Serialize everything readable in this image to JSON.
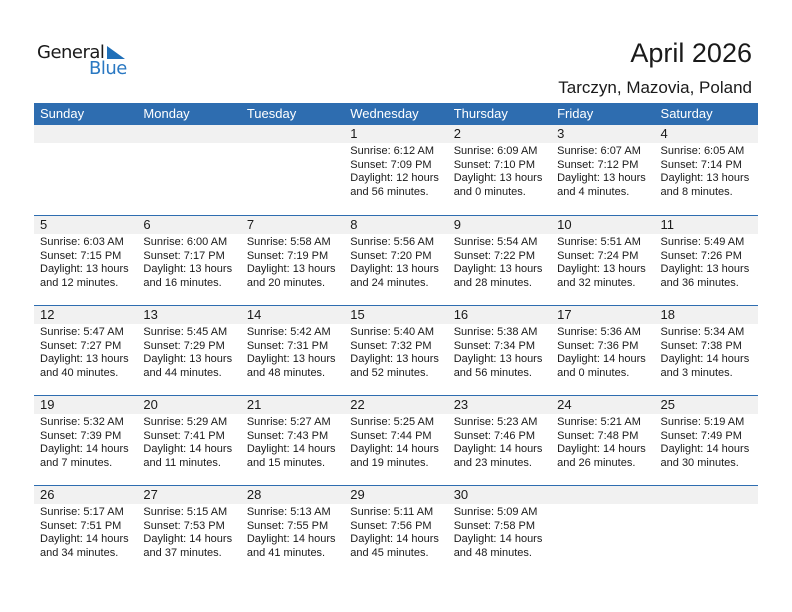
{
  "logo": {
    "general": "General",
    "blue": "Blue"
  },
  "header": {
    "title": "April 2026",
    "location": "Tarczyn, Mazovia, Poland"
  },
  "weekdays": [
    "Sunday",
    "Monday",
    "Tuesday",
    "Wednesday",
    "Thursday",
    "Friday",
    "Saturday"
  ],
  "colors": {
    "accent": "#2e6db0",
    "day_band": "#f1f1f1"
  },
  "weeks": [
    [
      null,
      null,
      null,
      {
        "day": "1",
        "sunrise": "Sunrise: 6:12 AM",
        "sunset": "Sunset: 7:09 PM",
        "daylight": "Daylight: 12 hours",
        "minutes": "and 56 minutes."
      },
      {
        "day": "2",
        "sunrise": "Sunrise: 6:09 AM",
        "sunset": "Sunset: 7:10 PM",
        "daylight": "Daylight: 13 hours",
        "minutes": "and 0 minutes."
      },
      {
        "day": "3",
        "sunrise": "Sunrise: 6:07 AM",
        "sunset": "Sunset: 7:12 PM",
        "daylight": "Daylight: 13 hours",
        "minutes": "and 4 minutes."
      },
      {
        "day": "4",
        "sunrise": "Sunrise: 6:05 AM",
        "sunset": "Sunset: 7:14 PM",
        "daylight": "Daylight: 13 hours",
        "minutes": "and 8 minutes."
      }
    ],
    [
      {
        "day": "5",
        "sunrise": "Sunrise: 6:03 AM",
        "sunset": "Sunset: 7:15 PM",
        "daylight": "Daylight: 13 hours",
        "minutes": "and 12 minutes."
      },
      {
        "day": "6",
        "sunrise": "Sunrise: 6:00 AM",
        "sunset": "Sunset: 7:17 PM",
        "daylight": "Daylight: 13 hours",
        "minutes": "and 16 minutes."
      },
      {
        "day": "7",
        "sunrise": "Sunrise: 5:58 AM",
        "sunset": "Sunset: 7:19 PM",
        "daylight": "Daylight: 13 hours",
        "minutes": "and 20 minutes."
      },
      {
        "day": "8",
        "sunrise": "Sunrise: 5:56 AM",
        "sunset": "Sunset: 7:20 PM",
        "daylight": "Daylight: 13 hours",
        "minutes": "and 24 minutes."
      },
      {
        "day": "9",
        "sunrise": "Sunrise: 5:54 AM",
        "sunset": "Sunset: 7:22 PM",
        "daylight": "Daylight: 13 hours",
        "minutes": "and 28 minutes."
      },
      {
        "day": "10",
        "sunrise": "Sunrise: 5:51 AM",
        "sunset": "Sunset: 7:24 PM",
        "daylight": "Daylight: 13 hours",
        "minutes": "and 32 minutes."
      },
      {
        "day": "11",
        "sunrise": "Sunrise: 5:49 AM",
        "sunset": "Sunset: 7:26 PM",
        "daylight": "Daylight: 13 hours",
        "minutes": "and 36 minutes."
      }
    ],
    [
      {
        "day": "12",
        "sunrise": "Sunrise: 5:47 AM",
        "sunset": "Sunset: 7:27 PM",
        "daylight": "Daylight: 13 hours",
        "minutes": "and 40 minutes."
      },
      {
        "day": "13",
        "sunrise": "Sunrise: 5:45 AM",
        "sunset": "Sunset: 7:29 PM",
        "daylight": "Daylight: 13 hours",
        "minutes": "and 44 minutes."
      },
      {
        "day": "14",
        "sunrise": "Sunrise: 5:42 AM",
        "sunset": "Sunset: 7:31 PM",
        "daylight": "Daylight: 13 hours",
        "minutes": "and 48 minutes."
      },
      {
        "day": "15",
        "sunrise": "Sunrise: 5:40 AM",
        "sunset": "Sunset: 7:32 PM",
        "daylight": "Daylight: 13 hours",
        "minutes": "and 52 minutes."
      },
      {
        "day": "16",
        "sunrise": "Sunrise: 5:38 AM",
        "sunset": "Sunset: 7:34 PM",
        "daylight": "Daylight: 13 hours",
        "minutes": "and 56 minutes."
      },
      {
        "day": "17",
        "sunrise": "Sunrise: 5:36 AM",
        "sunset": "Sunset: 7:36 PM",
        "daylight": "Daylight: 14 hours",
        "minutes": "and 0 minutes."
      },
      {
        "day": "18",
        "sunrise": "Sunrise: 5:34 AM",
        "sunset": "Sunset: 7:38 PM",
        "daylight": "Daylight: 14 hours",
        "minutes": "and 3 minutes."
      }
    ],
    [
      {
        "day": "19",
        "sunrise": "Sunrise: 5:32 AM",
        "sunset": "Sunset: 7:39 PM",
        "daylight": "Daylight: 14 hours",
        "minutes": "and 7 minutes."
      },
      {
        "day": "20",
        "sunrise": "Sunrise: 5:29 AM",
        "sunset": "Sunset: 7:41 PM",
        "daylight": "Daylight: 14 hours",
        "minutes": "and 11 minutes."
      },
      {
        "day": "21",
        "sunrise": "Sunrise: 5:27 AM",
        "sunset": "Sunset: 7:43 PM",
        "daylight": "Daylight: 14 hours",
        "minutes": "and 15 minutes."
      },
      {
        "day": "22",
        "sunrise": "Sunrise: 5:25 AM",
        "sunset": "Sunset: 7:44 PM",
        "daylight": "Daylight: 14 hours",
        "minutes": "and 19 minutes."
      },
      {
        "day": "23",
        "sunrise": "Sunrise: 5:23 AM",
        "sunset": "Sunset: 7:46 PM",
        "daylight": "Daylight: 14 hours",
        "minutes": "and 23 minutes."
      },
      {
        "day": "24",
        "sunrise": "Sunrise: 5:21 AM",
        "sunset": "Sunset: 7:48 PM",
        "daylight": "Daylight: 14 hours",
        "minutes": "and 26 minutes."
      },
      {
        "day": "25",
        "sunrise": "Sunrise: 5:19 AM",
        "sunset": "Sunset: 7:49 PM",
        "daylight": "Daylight: 14 hours",
        "minutes": "and 30 minutes."
      }
    ],
    [
      {
        "day": "26",
        "sunrise": "Sunrise: 5:17 AM",
        "sunset": "Sunset: 7:51 PM",
        "daylight": "Daylight: 14 hours",
        "minutes": "and 34 minutes."
      },
      {
        "day": "27",
        "sunrise": "Sunrise: 5:15 AM",
        "sunset": "Sunset: 7:53 PM",
        "daylight": "Daylight: 14 hours",
        "minutes": "and 37 minutes."
      },
      {
        "day": "28",
        "sunrise": "Sunrise: 5:13 AM",
        "sunset": "Sunset: 7:55 PM",
        "daylight": "Daylight: 14 hours",
        "minutes": "and 41 minutes."
      },
      {
        "day": "29",
        "sunrise": "Sunrise: 5:11 AM",
        "sunset": "Sunset: 7:56 PM",
        "daylight": "Daylight: 14 hours",
        "minutes": "and 45 minutes."
      },
      {
        "day": "30",
        "sunrise": "Sunrise: 5:09 AM",
        "sunset": "Sunset: 7:58 PM",
        "daylight": "Daylight: 14 hours",
        "minutes": "and 48 minutes."
      },
      null,
      null
    ]
  ]
}
